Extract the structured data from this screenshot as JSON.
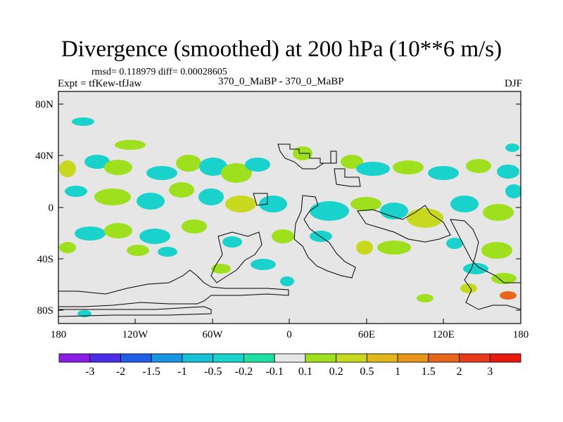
{
  "title": "Divergence (smoothed) at 200 hPa (10**6 m/s)",
  "stats": "rmsd= 0.118979 diff= 0.00028605",
  "experiment": "Expt = tfKew-tfJaw",
  "case": "370_0_MaBP - 370_0_MaBP",
  "season": "DJF",
  "map": {
    "lat_ticks": [
      "80N",
      "40N",
      "0",
      "40S",
      "80S"
    ],
    "lon_ticks": [
      "180",
      "120W",
      "60W",
      "0",
      "60E",
      "120E",
      "180"
    ],
    "background_color": "#e6e6e6"
  },
  "colorbar": {
    "labels": [
      "-3",
      "-2",
      "-1.5",
      "-1",
      "-0.5",
      "-0.2",
      "-0.1",
      "0.1",
      "0.2",
      "0.5",
      "1",
      "1.5",
      "2",
      "3"
    ],
    "colors": [
      "#8a1ee6",
      "#4b2ce8",
      "#1f5ee8",
      "#1a96e0",
      "#17c1d8",
      "#1ad2cc",
      "#1fe0a4",
      "#e6e6e6",
      "#9fe01e",
      "#c8d81e",
      "#e0b61a",
      "#e8941a",
      "#e8661a",
      "#e83a1a",
      "#e81a10"
    ]
  }
}
